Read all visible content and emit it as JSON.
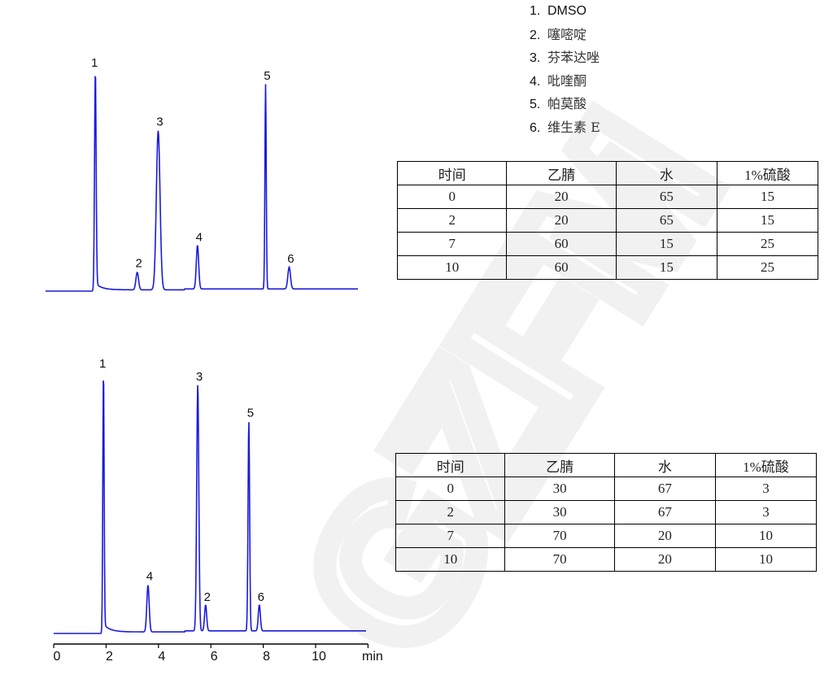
{
  "legend": [
    {
      "num": "1.",
      "name": "DMSO"
    },
    {
      "num": "2.",
      "name": "噻嘧啶"
    },
    {
      "num": "3.",
      "name": "芬苯达唑"
    },
    {
      "num": "4.",
      "name": "吡喹酮"
    },
    {
      "num": "5.",
      "name": "帕莫酸"
    },
    {
      "num": "6.",
      "name": "维生素 E"
    }
  ],
  "tables": [
    {
      "headers": [
        "时间",
        "乙腈",
        "水",
        "1%硫酸"
      ],
      "rows": [
        [
          "0",
          "20",
          "65",
          "15"
        ],
        [
          "2",
          "20",
          "65",
          "15"
        ],
        [
          "7",
          "60",
          "15",
          "25"
        ],
        [
          "10",
          "60",
          "15",
          "25"
        ]
      ]
    },
    {
      "headers": [
        "时间",
        "乙腈",
        "水",
        "1%硫酸"
      ],
      "rows": [
        [
          "0",
          "30",
          "67",
          "3"
        ],
        [
          "2",
          "30",
          "67",
          "3"
        ],
        [
          "7",
          "70",
          "20",
          "10"
        ],
        [
          "10",
          "70",
          "20",
          "10"
        ]
      ]
    }
  ],
  "watermark": "GZFM",
  "chart_data": [
    {
      "type": "line",
      "title": "",
      "xlabel": "min",
      "ylabel": "",
      "line_color": "#1a1adc",
      "xlim": [
        -0.3,
        11.6
      ],
      "peaks": [
        {
          "label": "1",
          "t": 1.6,
          "height": 1.0
        },
        {
          "label": "2",
          "t": 3.2,
          "height": 0.08
        },
        {
          "label": "3",
          "t": 4.0,
          "height": 0.73
        },
        {
          "label": "4",
          "t": 5.5,
          "height": 0.2
        },
        {
          "label": "5",
          "t": 8.1,
          "height": 0.94
        },
        {
          "label": "6",
          "t": 9.0,
          "height": 0.1
        }
      ]
    },
    {
      "type": "line",
      "title": "",
      "xlabel": "min",
      "ylabel": "",
      "line_color": "#1a1adc",
      "xlim": [
        0,
        11.8
      ],
      "xticks": [
        "0",
        "2",
        "4",
        "6",
        "8",
        "10"
      ],
      "peaks": [
        {
          "label": "1",
          "t": 1.9,
          "height": 1.0
        },
        {
          "label": "4",
          "t": 3.6,
          "height": 0.18
        },
        {
          "label": "3",
          "t": 5.5,
          "height": 0.95
        },
        {
          "label": "2",
          "t": 5.8,
          "height": 0.1
        },
        {
          "label": "5",
          "t": 7.45,
          "height": 0.81
        },
        {
          "label": "6",
          "t": 7.85,
          "height": 0.1
        }
      ]
    }
  ]
}
